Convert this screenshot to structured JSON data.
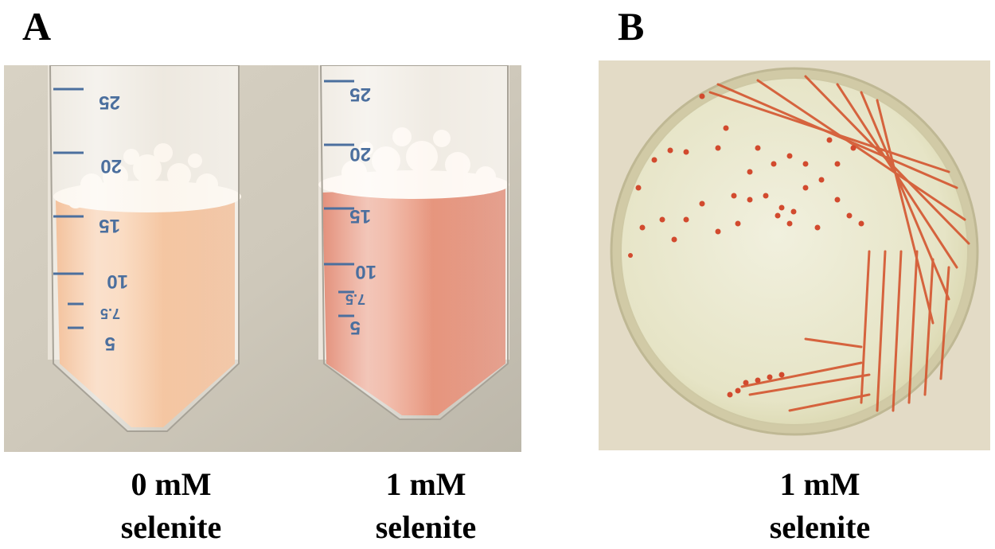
{
  "panels": {
    "a": {
      "letter": "A",
      "tubes": [
        {
          "concentration": "0 mM",
          "compound": "selenite",
          "liquid_color": "#f2b584",
          "scale_marks": [
            "25",
            "20",
            "15",
            "10",
            "7.5",
            "5"
          ]
        },
        {
          "concentration": "1 mM",
          "compound": "selenite",
          "liquid_color": "#dc7458",
          "scale_marks": [
            "25",
            "20",
            "15",
            "10",
            "7.5",
            "5"
          ]
        }
      ]
    },
    "b": {
      "letter": "B",
      "plate": {
        "concentration": "1 mM",
        "compound": "selenite",
        "agar_color": "#ecebd4",
        "colony_color": "#d24a2e"
      }
    }
  }
}
